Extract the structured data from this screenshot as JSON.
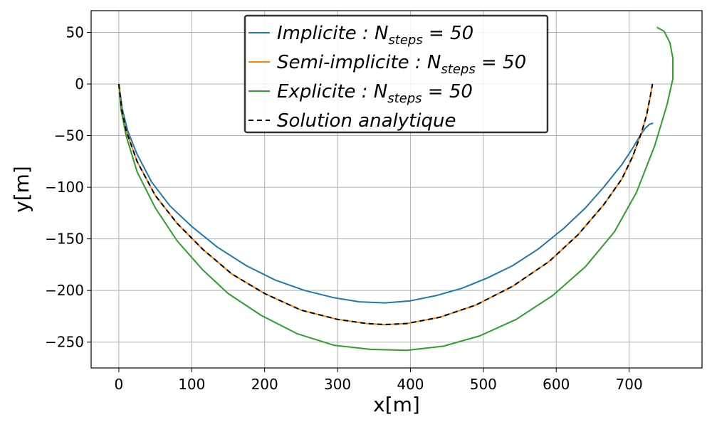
{
  "chart_data": {
    "type": "line",
    "xlabel": "x[m]",
    "ylabel": "y[m]",
    "xlim": [
      -38,
      800
    ],
    "ylim": [
      -275,
      71
    ],
    "xticks": [
      0,
      100,
      200,
      300,
      400,
      500,
      600,
      700
    ],
    "yticks": [
      50,
      0,
      -50,
      -100,
      -150,
      -200,
      -250
    ],
    "grid": true,
    "legend_position": "top-center",
    "series": [
      {
        "name": "Implicite : N_steps = 50",
        "legend_main": "Implicite : N",
        "legend_sub": "steps",
        "legend_rest": " = 50",
        "color": "#1f77b4",
        "dash": "",
        "x": [
          0,
          5,
          12,
          25,
          45,
          70,
          100,
          135,
          175,
          215,
          255,
          295,
          330,
          365,
          400,
          435,
          470,
          505,
          540,
          575,
          610,
          640,
          665,
          690,
          705,
          715,
          722,
          728,
          733
        ],
        "y": [
          0,
          -25,
          -45,
          -68,
          -95,
          -118,
          -138,
          -158,
          -176,
          -190,
          -200,
          -207,
          -211,
          -212,
          -210,
          -205,
          -198,
          -188,
          -176,
          -160,
          -140,
          -120,
          -100,
          -78,
          -62,
          -50,
          -43,
          -39,
          -38
        ]
      },
      {
        "name": "Semi-implicite : N_steps = 50",
        "legend_main": "Semi-implicite : N",
        "legend_sub": "steps",
        "legend_rest": " = 50",
        "color": "#ff7f0e",
        "dash": "",
        "x": [
          0,
          4,
          10,
          25,
          50,
          80,
          115,
          155,
          200,
          250,
          300,
          340,
          365,
          395,
          440,
          490,
          540,
          590,
          630,
          665,
          690,
          705,
          717,
          724,
          729,
          732
        ],
        "y": [
          0,
          -25,
          -45,
          -75,
          -108,
          -135,
          -160,
          -184,
          -203,
          -219,
          -228,
          -232,
          -233,
          -232,
          -226,
          -214,
          -196,
          -172,
          -146,
          -117,
          -92,
          -70,
          -47,
          -30,
          -12,
          0
        ]
      },
      {
        "name": "Explicite : N_steps = 50",
        "legend_main": "Explicite : N",
        "legend_sub": "steps",
        "legend_rest": " = 50",
        "color": "#2ca02c",
        "dash": "",
        "x": [
          0,
          3,
          10,
          25,
          50,
          80,
          115,
          150,
          195,
          245,
          295,
          345,
          395,
          445,
          495,
          545,
          595,
          640,
          680,
          710,
          735,
          752,
          760,
          760,
          756,
          748,
          738
        ],
        "y": [
          0,
          -25,
          -50,
          -85,
          -120,
          -152,
          -180,
          -203,
          -224,
          -242,
          -253,
          -257,
          -258,
          -254,
          -244,
          -228,
          -205,
          -177,
          -143,
          -105,
          -60,
          -20,
          5,
          25,
          40,
          51,
          55
        ]
      },
      {
        "name": "Solution analytique",
        "legend_main": "Solution analytique",
        "legend_sub": "",
        "legend_rest": "",
        "color": "#000000",
        "dash": "7,5",
        "x": [
          0,
          4,
          10,
          25,
          50,
          80,
          115,
          155,
          200,
          250,
          300,
          340,
          365,
          395,
          440,
          490,
          540,
          590,
          630,
          665,
          690,
          705,
          717,
          724,
          729,
          732
        ],
        "y": [
          0,
          -25,
          -45,
          -75,
          -108,
          -135,
          -160,
          -184,
          -203,
          -219,
          -228,
          -232,
          -233,
          -232,
          -226,
          -214,
          -196,
          -172,
          -146,
          -117,
          -92,
          -70,
          -47,
          -30,
          -12,
          0
        ]
      }
    ]
  }
}
